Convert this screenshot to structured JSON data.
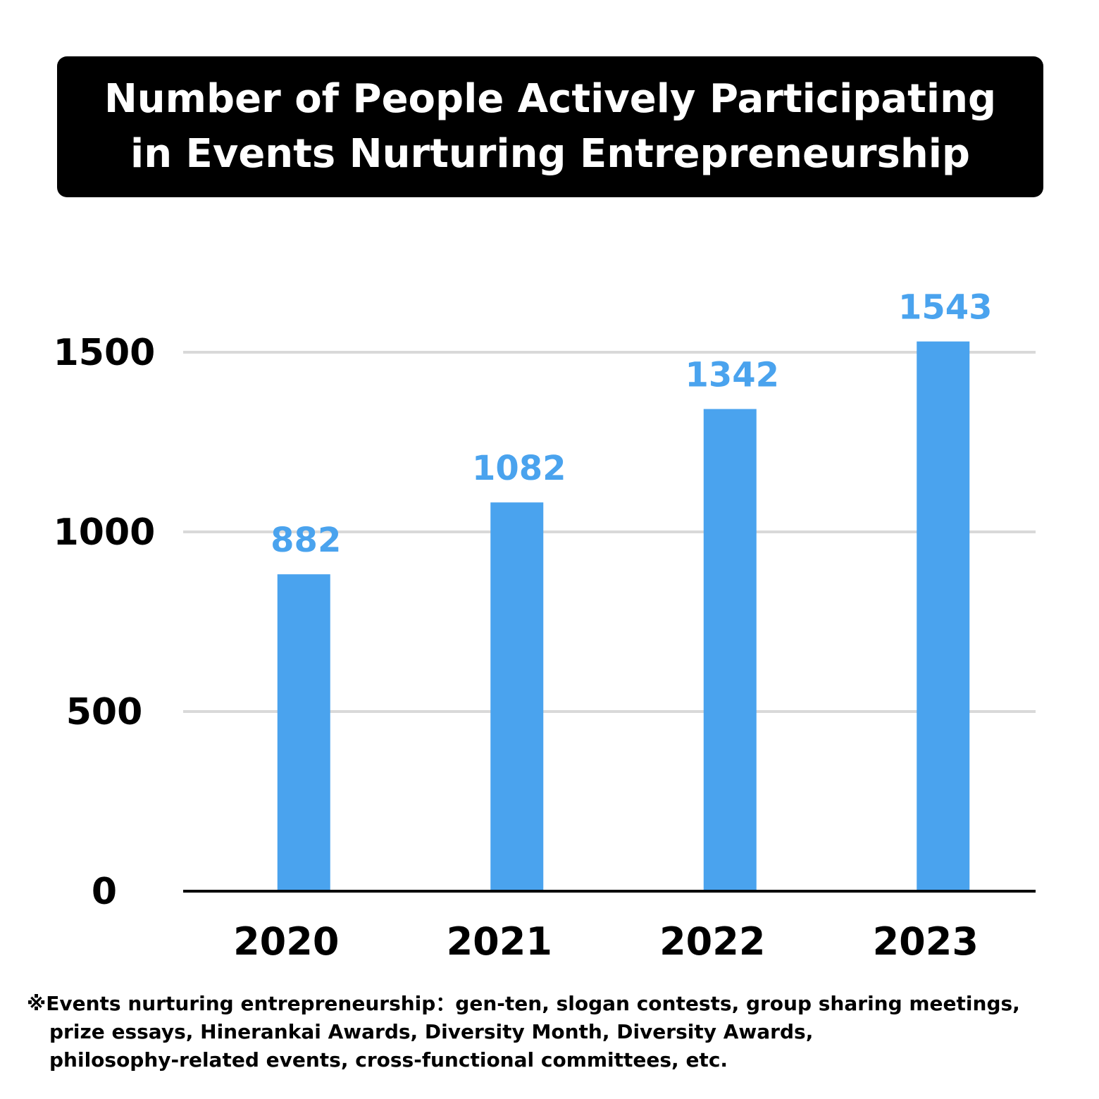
{
  "colors": {
    "bar": "#4aa3ee",
    "value_label": "#4aa3ee",
    "grid": "#d9d9d9",
    "axis": "#000000",
    "title_bg": "#000000",
    "title_text": "#ffffff"
  },
  "chart_data": {
    "type": "bar",
    "title": "Number of People Actively Participating in Events Nurturing Entrepreneurship",
    "title_lines": [
      "Number of People Actively Participating",
      "in Events Nurturing Entrepreneurship"
    ],
    "categories": [
      "2020",
      "2021",
      "2022",
      "2023"
    ],
    "values": [
      882,
      1082,
      1342,
      1543
    ],
    "data_labels": [
      "882",
      "1082",
      "1342",
      "1543"
    ],
    "y_ticks": [
      0,
      500,
      1000,
      1500
    ],
    "y_tick_labels": [
      "0",
      "500",
      "1000",
      "1500"
    ],
    "ylim": [
      0,
      1500
    ],
    "xlabel": "",
    "ylabel": "",
    "grid": true,
    "legend": "none"
  },
  "footnote": {
    "lines": [
      "※Events nurturing entrepreneurship：gen-ten, slogan contests, group sharing meetings,",
      "prize essays, Hinerankai Awards, Diversity Month, Diversity Awards,",
      "philosophy-related events, cross-functional committees, etc."
    ]
  }
}
